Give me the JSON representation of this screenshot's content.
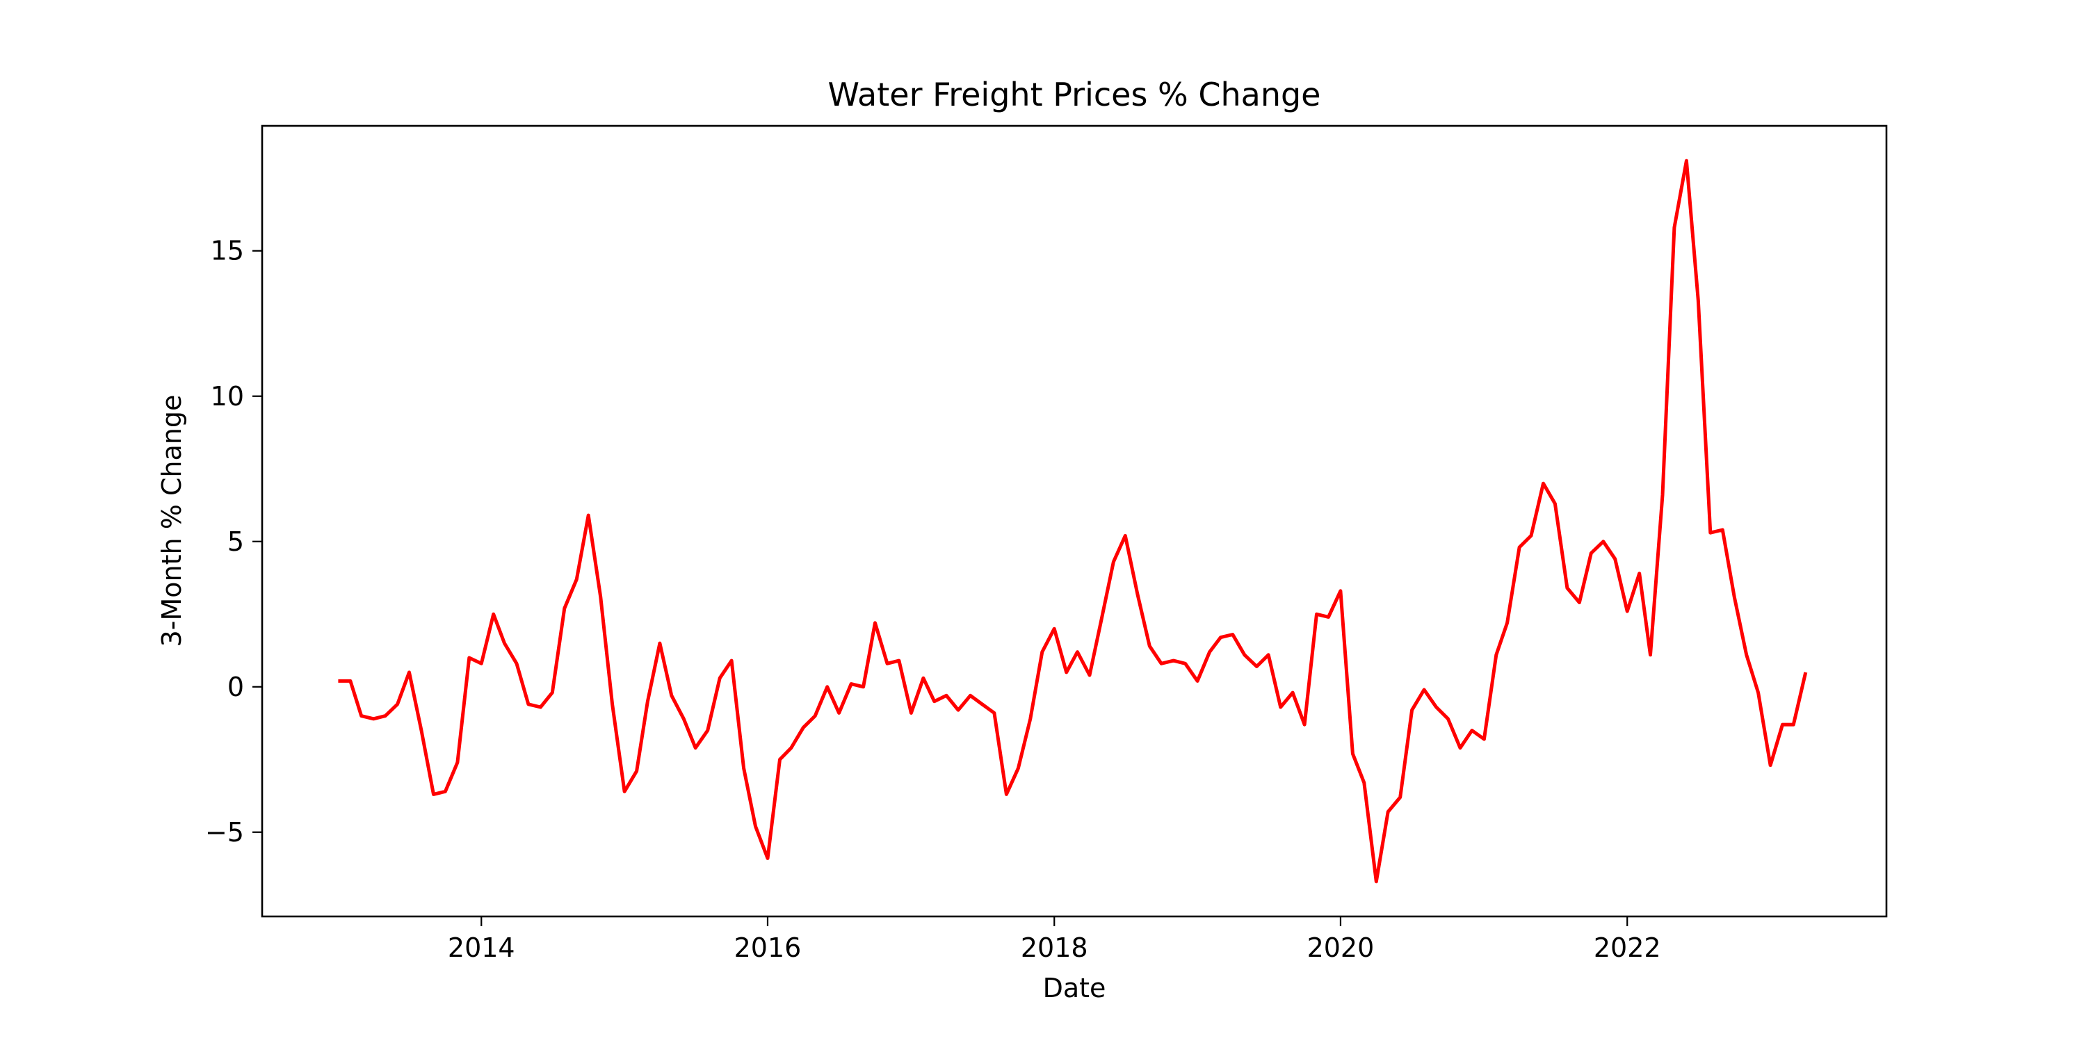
{
  "chart_data": {
    "type": "line",
    "title": "Water Freight Prices % Change",
    "xlabel": "Date",
    "ylabel": "3-Month % Change",
    "grid": false,
    "legend": "none",
    "line_color": "#ff0000",
    "xlim": [
      "2012-06-21",
      "2023-10-24"
    ],
    "ylim": [
      -7.9,
      19.3
    ],
    "x_ticks": [
      "2014",
      "2016",
      "2018",
      "2020",
      "2022"
    ],
    "y_ticks": [
      -5,
      0,
      5,
      10,
      15
    ],
    "series": [
      {
        "x": [
          "2013-01",
          "2013-02",
          "2013-03",
          "2013-04",
          "2013-05",
          "2013-06",
          "2013-07",
          "2013-08",
          "2013-09",
          "2013-10",
          "2013-11",
          "2013-12",
          "2014-01",
          "2014-02",
          "2014-03",
          "2014-04",
          "2014-05",
          "2014-06",
          "2014-07",
          "2014-08",
          "2014-09",
          "2014-10",
          "2014-11",
          "2014-12",
          "2015-01",
          "2015-02",
          "2015-03",
          "2015-04",
          "2015-05",
          "2015-06",
          "2015-07",
          "2015-08",
          "2015-09",
          "2015-10",
          "2015-11",
          "2015-12",
          "2016-01",
          "2016-02",
          "2016-03",
          "2016-04",
          "2016-05",
          "2016-06",
          "2016-07",
          "2016-08",
          "2016-09",
          "2016-10",
          "2016-11",
          "2016-12",
          "2017-01",
          "2017-02",
          "2017-03",
          "2017-04",
          "2017-05",
          "2017-06",
          "2017-07",
          "2017-08",
          "2017-09",
          "2017-10",
          "2017-11",
          "2017-12",
          "2018-01",
          "2018-02",
          "2018-03",
          "2018-04",
          "2018-05",
          "2018-06",
          "2018-07",
          "2018-08",
          "2018-09",
          "2018-10",
          "2018-11",
          "2018-12",
          "2019-01",
          "2019-02",
          "2019-03",
          "2019-04",
          "2019-05",
          "2019-06",
          "2019-07",
          "2019-08",
          "2019-09",
          "2019-10",
          "2019-11",
          "2019-12",
          "2020-01",
          "2020-02",
          "2020-03",
          "2020-04",
          "2020-05",
          "2020-06",
          "2020-07",
          "2020-08",
          "2020-09",
          "2020-10",
          "2020-11",
          "2020-12",
          "2021-01",
          "2021-02",
          "2021-03",
          "2021-04",
          "2021-05",
          "2021-06",
          "2021-07",
          "2021-08",
          "2021-09",
          "2021-10",
          "2021-11",
          "2021-12",
          "2022-01",
          "2022-02",
          "2022-03",
          "2022-04",
          "2022-05",
          "2022-06",
          "2022-07",
          "2022-08",
          "2022-09",
          "2022-10",
          "2022-11",
          "2022-12",
          "2023-01",
          "2023-02",
          "2023-03",
          "2023-04"
        ],
        "values": [
          0.2,
          0.2,
          -1.0,
          -1.1,
          -1.0,
          -0.6,
          0.5,
          -1.5,
          -3.7,
          -3.6,
          -2.6,
          1.0,
          0.8,
          2.5,
          1.5,
          0.8,
          -0.6,
          -0.7,
          -0.2,
          2.7,
          3.7,
          5.9,
          3.1,
          -0.6,
          -3.6,
          -2.9,
          -0.5,
          1.5,
          -0.3,
          -1.1,
          -2.1,
          -1.5,
          0.3,
          0.9,
          -2.8,
          -4.8,
          -5.9,
          -2.5,
          -2.1,
          -1.4,
          -1.0,
          0.0,
          -0.9,
          0.1,
          0.0,
          2.2,
          0.8,
          0.9,
          -0.9,
          0.3,
          -0.5,
          -0.3,
          -0.8,
          -0.3,
          -0.6,
          -0.9,
          -3.7,
          -2.8,
          -1.1,
          1.2,
          2.0,
          0.5,
          1.2,
          0.4,
          2.3,
          4.3,
          5.2,
          3.2,
          1.4,
          0.8,
          0.9,
          0.8,
          0.2,
          1.2,
          1.7,
          1.8,
          1.1,
          0.7,
          1.1,
          -0.7,
          -0.2,
          -1.3,
          2.5,
          2.4,
          3.3,
          -2.3,
          -3.3,
          -6.7,
          -4.3,
          -3.8,
          -0.8,
          -0.1,
          -0.7,
          -1.1,
          -2.1,
          -1.5,
          -1.8,
          1.1,
          2.2,
          4.8,
          5.2,
          7.0,
          6.3,
          3.4,
          2.9,
          4.6,
          5.0,
          4.4,
          2.6,
          3.9,
          1.1,
          6.6,
          15.8,
          18.1,
          13.3,
          5.3,
          5.4,
          3.1,
          1.1,
          -0.2,
          -2.7,
          -1.3,
          -1.3,
          0.5
        ]
      }
    ]
  }
}
